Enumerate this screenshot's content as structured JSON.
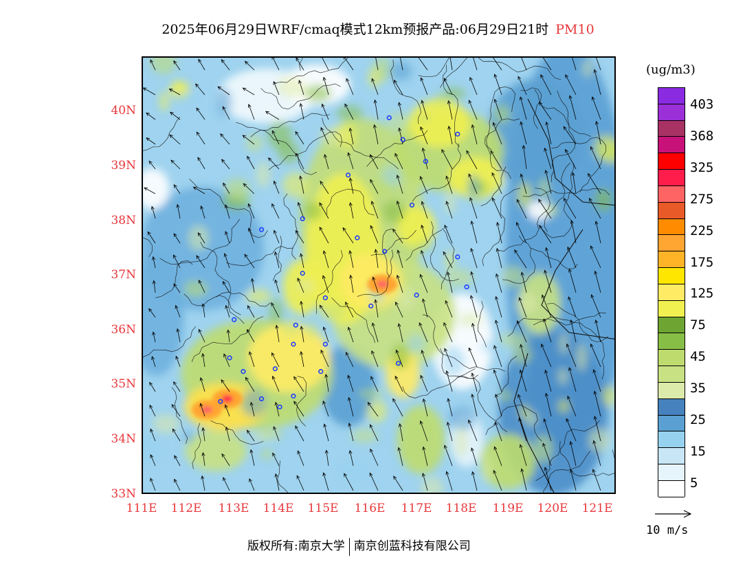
{
  "title": {
    "main": "2025年06月29日WRF/cmaq模式12km预报产品:06月29日21时",
    "pollutant": "PM10"
  },
  "map": {
    "region": "North China Plain",
    "lat_labels": [
      "40N",
      "39N",
      "38N",
      "37N",
      "36N",
      "35N",
      "34N",
      "33N"
    ],
    "lon_labels": [
      "111E",
      "112E",
      "113E",
      "114E",
      "115E",
      "116E",
      "117E",
      "118E",
      "119E",
      "120E",
      "121E"
    ],
    "dominant_wind": "southeast to northwest",
    "hotspots": [
      {
        "name": "west-hotspot",
        "lat": 34.55,
        "lon": 112.4,
        "level": "175-225"
      },
      {
        "name": "east-hotspot",
        "lat": 36.85,
        "lon": 116.25,
        "level": "175-225"
      },
      {
        "name": "mid-hotspot",
        "lat": 34.75,
        "lon": 112.85,
        "level": "325-368"
      }
    ]
  },
  "legend": {
    "unit": "(ug/m3)",
    "colors": [
      "#8a2be2",
      "#9b30d9",
      "#a83264",
      "#c8127a",
      "#ff0000",
      "#ff1e4b",
      "#ff6464",
      "#e85a28",
      "#ff8c00",
      "#ffa532",
      "#ffb428",
      "#ffe600",
      "#ffeb64",
      "#f0f050",
      "#6ea532",
      "#87be46",
      "#bedc6e",
      "#c8e182",
      "#dceaaa",
      "#4682be",
      "#5aa0d2",
      "#96d2f0",
      "#c8e6f5",
      "#e6f4fc",
      "#ffffff"
    ],
    "labels": [
      "403",
      "368",
      "325",
      "275",
      "225",
      "175",
      "125",
      "75",
      "45",
      "35",
      "25",
      "15",
      "5"
    ]
  },
  "wind_reference": {
    "label": "10 m/s"
  },
  "footer": {
    "left": "版权所有:南京大学",
    "right": "南京创蓝科技有限公司"
  }
}
